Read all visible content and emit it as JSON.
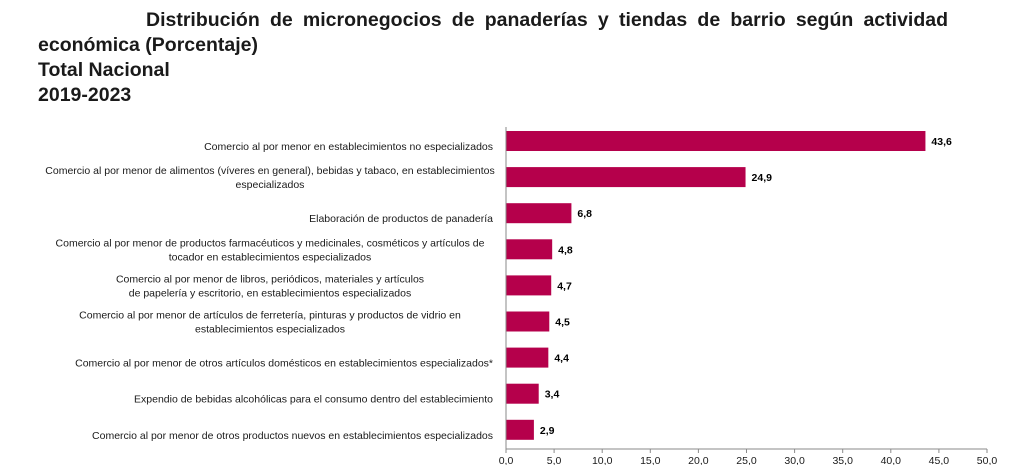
{
  "title": {
    "line1": "Distribución de micronegocios de panaderías y tiendas de barrio según actividad",
    "line2": "económica (Porcentaje)",
    "line3": "Total Nacional",
    "line4": "2019-2023"
  },
  "chart_data": {
    "type": "bar",
    "orientation": "horizontal",
    "color": "#b5004b",
    "categories": [
      [
        "Comercio al por menor en establecimientos no especializados"
      ],
      [
        "Comercio al por menor de alimentos (víveres en general), bebidas y tabaco, en establecimientos",
        "especializados"
      ],
      [
        "Elaboración de productos de panadería"
      ],
      [
        "Comercio al por menor de productos farmacéuticos y medicinales, cosméticos y artículos de",
        "tocador en establecimientos especializados"
      ],
      [
        "Comercio al por menor de libros, periódicos, materiales y artículos",
        "de papelería y escritorio, en establecimientos especializados"
      ],
      [
        "Comercio al por menor de artículos de ferretería, pinturas y productos de vidrio en",
        "establecimientos especializados"
      ],
      [
        "Comercio al por menor de otros artículos domésticos en establecimientos especializados*"
      ],
      [
        "Expendio de bebidas alcohólicas para el consumo dentro del establecimiento"
      ],
      [
        "Comercio al por menor de otros productos nuevos en establecimientos especializados"
      ]
    ],
    "values": [
      43.6,
      24.9,
      6.8,
      4.8,
      4.7,
      4.5,
      4.4,
      3.4,
      2.9
    ],
    "value_labels": [
      "43,6",
      "24,9",
      "6,8",
      "4,8",
      "4,7",
      "4,5",
      "4,4",
      "3,4",
      "2,9"
    ],
    "xlim": [
      0,
      50
    ],
    "x_ticks": [
      "0,0",
      "5,0",
      "10,0",
      "15,0",
      "20,0",
      "25,0",
      "30,0",
      "35,0",
      "40,0",
      "45,0",
      "50,0"
    ],
    "grid": false
  }
}
